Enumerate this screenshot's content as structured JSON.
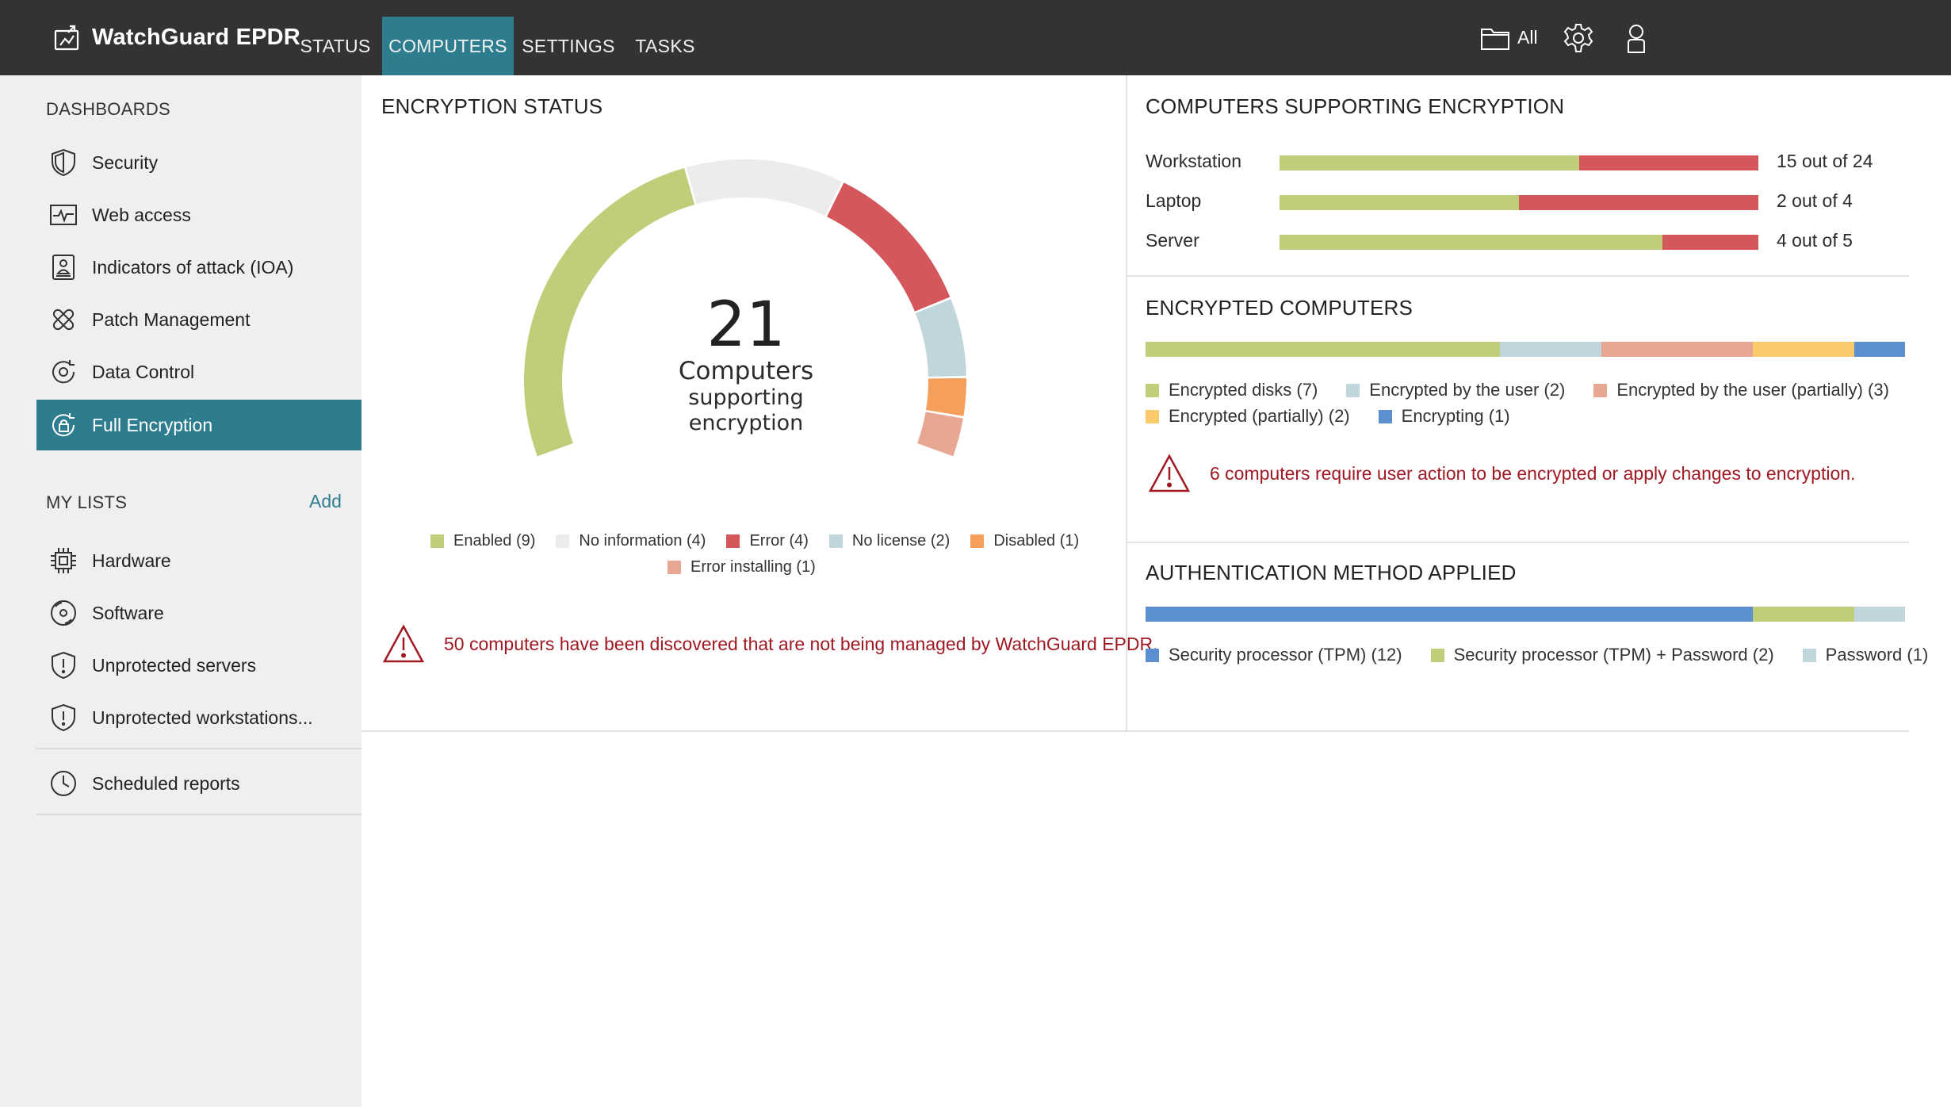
{
  "app": {
    "title": "WatchGuard EPDR"
  },
  "nav": {
    "tabs": [
      {
        "label": "STATUS"
      },
      {
        "label": "COMPUTERS"
      },
      {
        "label": "SETTINGS"
      },
      {
        "label": "TASKS"
      }
    ]
  },
  "topbar": {
    "filter_label": "All",
    "icons": [
      "folder-icon",
      "gear-icon",
      "user-icon"
    ]
  },
  "sidebar": {
    "dashboards_header": "DASHBOARDS",
    "dashboards": [
      {
        "label": "Security",
        "icon": "shield-icon"
      },
      {
        "label": "Web access",
        "icon": "web-access-icon"
      },
      {
        "label": "Indicators of attack (IOA)",
        "icon": "ioa-icon"
      },
      {
        "label": "Patch Management",
        "icon": "patch-icon"
      },
      {
        "label": "Data Control",
        "icon": "data-control-icon"
      },
      {
        "label": "Full Encryption",
        "icon": "encryption-icon",
        "active": true
      }
    ],
    "lists_header": "MY LISTS",
    "add_label": "Add",
    "lists": [
      {
        "label": "Hardware",
        "icon": "chip-icon"
      },
      {
        "label": "Software",
        "icon": "disc-icon"
      },
      {
        "label": "Unprotected servers",
        "icon": "shield-alert-icon"
      },
      {
        "label": "Unprotected workstations...",
        "icon": "shield-alert-icon"
      }
    ],
    "scheduled_reports": {
      "label": "Scheduled reports",
      "icon": "clock-icon"
    }
  },
  "encryption_status": {
    "title": "ENCRYPTION STATUS",
    "total": "21",
    "center_line1": "Computers",
    "center_line2": "supporting",
    "center_line3": "encryption",
    "legend": [
      {
        "label": "Enabled (9)",
        "value": 9,
        "color": "#bfcf79"
      },
      {
        "label": "No information (4)",
        "value": 4,
        "color": "#ececec"
      },
      {
        "label": "Error (4)",
        "value": 4,
        "color": "#d4575c"
      },
      {
        "label": "No license (2)",
        "value": 2,
        "color": "#c1d6dc"
      },
      {
        "label": "Disabled (1)",
        "value": 1,
        "color": "#f59f5b"
      },
      {
        "label": "Error installing (1)",
        "value": 1,
        "color": "#e8a793"
      }
    ],
    "alert": "50 computers have been discovered that are not being managed by WatchGuard EPDR."
  },
  "computers_supporting": {
    "title": "COMPUTERS SUPPORTING ENCRYPTION",
    "rows": [
      {
        "label": "Workstation",
        "value": "15 out of 24",
        "supported": 15,
        "total": 24
      },
      {
        "label": "Laptop",
        "value": "2 out of 4",
        "supported": 2,
        "total": 4
      },
      {
        "label": "Server",
        "value": "4 out of 5",
        "supported": 4,
        "total": 5
      }
    ],
    "colors": {
      "supported": "#bfcf79",
      "unsupported": "#d4575c"
    }
  },
  "encrypted_computers": {
    "title": "ENCRYPTED COMPUTERS",
    "segments": [
      {
        "label": "Encrypted disks (7)",
        "value": 7,
        "color": "#bfcf79"
      },
      {
        "label": "Encrypted by the user (2)",
        "value": 2,
        "color": "#c1d6dc"
      },
      {
        "label": "Encrypted by the user (partially) (3)",
        "value": 3,
        "color": "#e8a793"
      },
      {
        "label": "Encrypted (partially) (2)",
        "value": 2,
        "color": "#fbcb6b"
      },
      {
        "label": "Encrypting (1)",
        "value": 1,
        "color": "#5b8fcf"
      }
    ],
    "alert": "6 computers require user action to be encrypted or apply changes to encryption."
  },
  "auth_method": {
    "title": "AUTHENTICATION METHOD APPLIED",
    "segments": [
      {
        "label": "Security processor (TPM) (12)",
        "value": 12,
        "color": "#5b8fcf"
      },
      {
        "label": "Security processor (TPM) + Password (2)",
        "value": 2,
        "color": "#bfcf79"
      },
      {
        "label": "Password (1)",
        "value": 1,
        "color": "#c1d6dc"
      }
    ]
  },
  "colors": {
    "accent": "#2e7d8f",
    "topbar": "#333333",
    "sidebar": "#efefef",
    "alert": "#a01822"
  }
}
